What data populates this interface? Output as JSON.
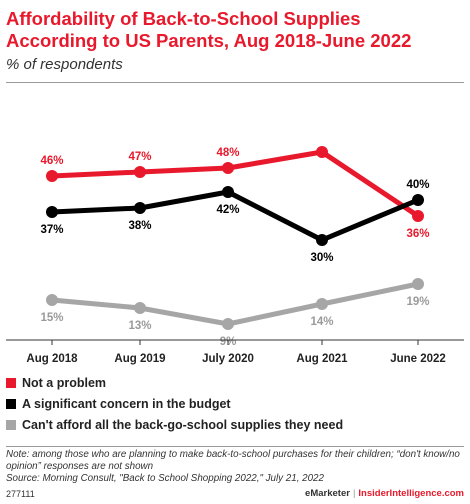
{
  "header": {
    "title": "Affordability of Back-to-School Supplies According to US Parents, Aug 2018-June 2022",
    "subtitle": "% of respondents"
  },
  "chart_data": {
    "type": "line",
    "title": "Affordability of Back-to-School Supplies According to US Parents, Aug 2018-June 2022",
    "subtitle": "% of respondents",
    "xlabel": "",
    "ylabel": "",
    "categories": [
      "Aug 2018",
      "Aug 2019",
      "July 2020",
      "Aug 2021",
      "June 2022"
    ],
    "series": [
      {
        "name": "Not a problem",
        "color": "#e8192c",
        "values": [
          46,
          47,
          48,
          52,
          36
        ],
        "labels": [
          "46%",
          "47%",
          "48%",
          "52%",
          "36%"
        ]
      },
      {
        "name": "A significant concern in the budget",
        "color": "#000000",
        "values": [
          37,
          38,
          42,
          30,
          40
        ],
        "labels": [
          "37%",
          "38%",
          "42%",
          "30%",
          "40%"
        ]
      },
      {
        "name": "Can't afford all the back-go-school supplies they need",
        "color": "#a6a6a6",
        "values": [
          15,
          13,
          9,
          14,
          19
        ],
        "labels": [
          "15%",
          "13%",
          "9%",
          "14%",
          "19%"
        ]
      }
    ],
    "ylim": [
      5,
      55
    ],
    "grid": false,
    "legend_position": "bottom-left"
  },
  "notes": {
    "note": "Note: among those who are planning to make back-to-school purchases for their children; “don't know/no opinion” responses are not shown",
    "source": "Source: Morning Consult, \"Back to School Shopping 2022,\" July 21, 2022"
  },
  "footer": {
    "chart_id": "277111",
    "brand": "eMarketer",
    "separator": "|",
    "site": "InsiderIntelligence.com"
  }
}
